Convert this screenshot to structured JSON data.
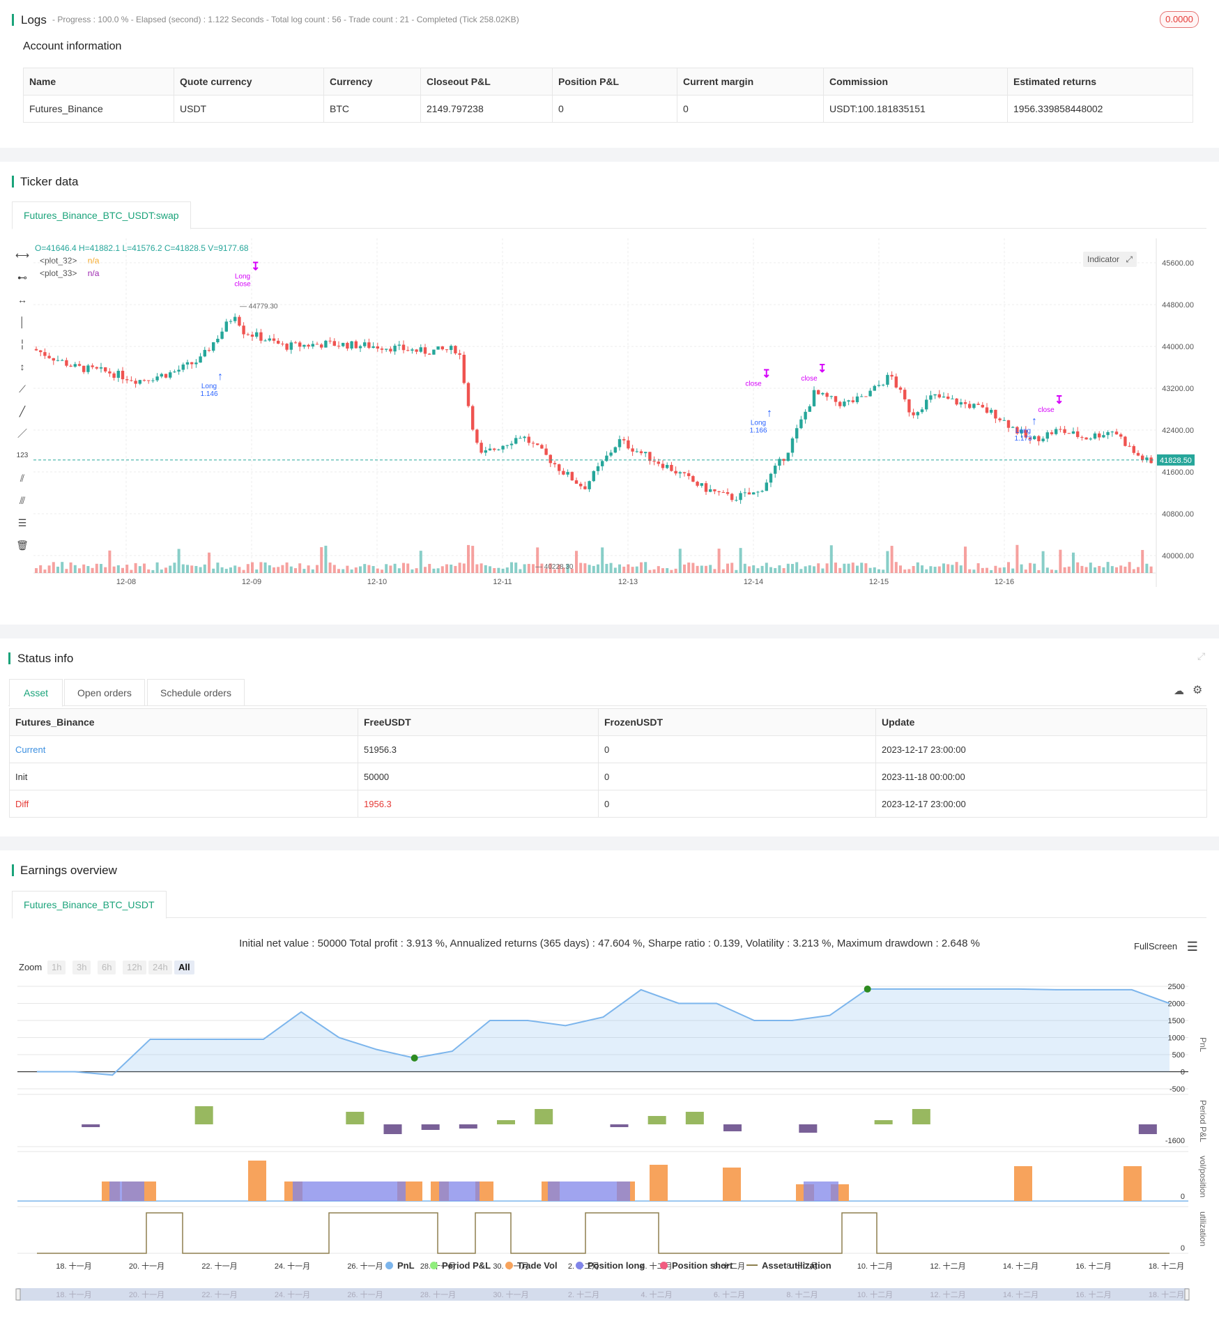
{
  "logs": {
    "title": "Logs",
    "summary": "- Progress : 100.0 % - Elapsed (second) : 1.122  Seconds - Total log count : 56 - Trade count : 21 - Completed (Tick 258.02KB)",
    "badge": "0.0000"
  },
  "account": {
    "title": "Account information",
    "headers": [
      "Name",
      "Quote currency",
      "Currency",
      "Closeout P&L",
      "Position P&L",
      "Current margin",
      "Commission",
      "Estimated returns"
    ],
    "row": [
      "Futures_Binance",
      "USDT",
      "BTC",
      "2149.797238",
      "0",
      "0",
      "USDT:100.181835151",
      "1956.339858448002"
    ]
  },
  "ticker": {
    "title": "Ticker data",
    "tab": "Futures_Binance_BTC_USDT:swap",
    "ohlc": "O=41646.4  H=41882.1  L=41576.2  C=41828.5  V=9177.68",
    "plots": [
      {
        "label": "<plot_32>",
        "value": "n/a",
        "color": "#f5a623"
      },
      {
        "label": "<plot_33>",
        "value": "n/a",
        "color": "#9c27b0"
      }
    ],
    "indicator_label": "Indicator",
    "last_price": "41828.50",
    "high_label": "44779.30",
    "low_label": "40228.30",
    "price_axis": [
      "45600.00",
      "44800.00",
      "44000.00",
      "43200.00",
      "42400.00",
      "41600.00",
      "40800.00",
      "40000.00"
    ],
    "date_axis": [
      "12-08",
      "12-09",
      "12-10",
      "12-11",
      "12-13",
      "12-14",
      "12-15",
      "12-16"
    ],
    "markers": [
      {
        "text": "Long",
        "sub": "1.146",
        "color": "#2962ff"
      },
      {
        "text": "Long",
        "sub": "close",
        "color": "#d500f9"
      },
      {
        "text": "close",
        "color": "#d500f9"
      },
      {
        "text": "Long",
        "sub": "1.166",
        "color": "#2962ff"
      },
      {
        "text": "close",
        "color": "#d500f9"
      },
      {
        "text": "Long",
        "sub": "1.173",
        "color": "#2962ff"
      },
      {
        "text": "close",
        "color": "#d500f9"
      }
    ],
    "colors": {
      "up": "#26a69a",
      "down": "#ef5350"
    }
  },
  "status": {
    "title": "Status info",
    "tabs": [
      "Asset",
      "Open orders",
      "Schedule orders"
    ],
    "headers": [
      "Futures_Binance",
      "FreeUSDT",
      "FrozenUSDT",
      "Update"
    ],
    "rows": [
      [
        "Current",
        "51956.3",
        "0",
        "2023-12-17 23:00:00"
      ],
      [
        "Init",
        "50000",
        "0",
        "2023-11-18 00:00:00"
      ],
      [
        "Diff",
        "1956.3",
        "0",
        "2023-12-17 23:00:00"
      ]
    ]
  },
  "earnings": {
    "title": "Earnings overview",
    "tab": "Futures_Binance_BTC_USDT",
    "summary": "Initial net value : 50000 Total profit : 3.913 %, Annualized returns (365 days) : 47.604 %, Sharpe ratio : 0.139, Volatility : 3.213 %, Maximum drawdown : 2.648 %",
    "fullscreen": "FullScreen",
    "zoom_label": "Zoom",
    "zoom_buttons": [
      "1h",
      "3h",
      "6h",
      "12h",
      "24h",
      "All"
    ],
    "pnl_axis": [
      "2500",
      "2000",
      "1500",
      "1000",
      "500",
      "0",
      "-500"
    ],
    "axis_titles": [
      "PnL",
      "Period P&L",
      "vol/position",
      "utilization"
    ],
    "period_axis_min": "-1600",
    "vol_axis_zero": "0",
    "util_axis_zero": "0",
    "x_axis": [
      "18. 十一月",
      "20. 十一月",
      "22. 十一月",
      "24. 十一月",
      "26. 十一月",
      "28. 十一月",
      "30. 十一月",
      "2. 十二月",
      "4. 十二月",
      "6. 十二月",
      "8. 十二月",
      "10. 十二月",
      "12. 十二月",
      "14. 十二月",
      "16. 十二月",
      "18. 十二月"
    ],
    "legend": [
      {
        "label": "PnL",
        "color": "#7cb5ec"
      },
      {
        "label": "Period P&L",
        "color": "#90ed7d"
      },
      {
        "label": "Trade Vol",
        "color": "#f7a35c"
      },
      {
        "label": "Position long",
        "color": "#8085e9"
      },
      {
        "label": "Position short",
        "color": "#f15c80"
      },
      {
        "label": "Asset utilization",
        "color": "#8d7f4e"
      }
    ]
  },
  "chart_data": {
    "type": "line",
    "x": [
      "18. 十一月",
      "19. 十一月",
      "20. 十一月",
      "21. 十一月",
      "22. 十一月",
      "23. 十一月",
      "24. 十一月",
      "25. 十一月",
      "26. 十一月",
      "27. 十一月",
      "28. 十一月",
      "29. 十一月",
      "30. 十一月",
      "1. 十二月",
      "2. 十二月",
      "3. 十二月",
      "4. 十二月",
      "5. 十二月",
      "6. 十二月",
      "7. 十二月",
      "8. 十二月",
      "9. 十二月",
      "10. 十二月",
      "11. 十二月",
      "12. 十二月",
      "13. 十二月",
      "14. 十二月",
      "15. 十二月",
      "16. 十二月",
      "17. 十二月",
      "18. 十二月"
    ],
    "series": [
      {
        "name": "PnL",
        "values": [
          0,
          0,
          -100,
          950,
          950,
          950,
          950,
          1750,
          1000,
          650,
          400,
          600,
          1500,
          1500,
          1350,
          1600,
          2400,
          2000,
          2000,
          1500,
          1500,
          1650,
          2420,
          2420,
          2420,
          2420,
          2420,
          2400,
          2400,
          2400,
          2000
        ]
      }
    ],
    "ylim": [
      -500,
      2500
    ],
    "xlabel": "",
    "ylabel": "PnL"
  }
}
